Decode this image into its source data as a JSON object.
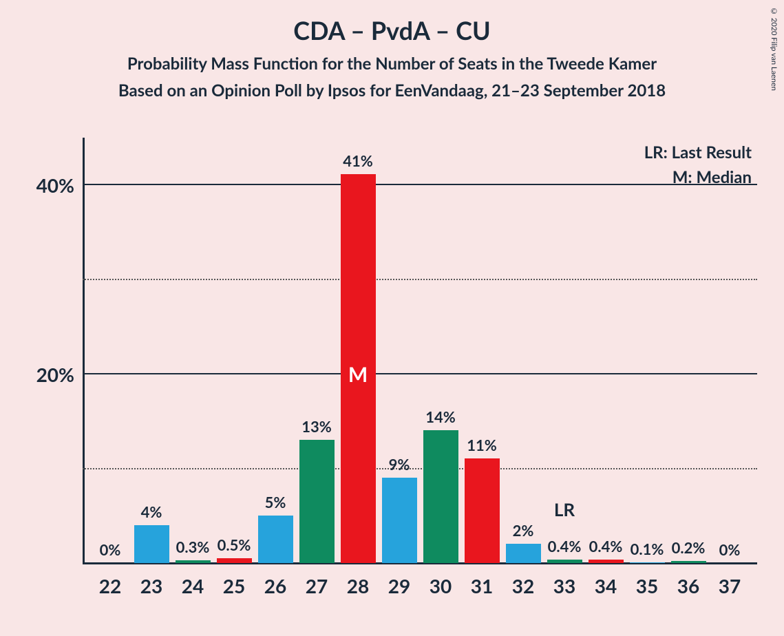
{
  "copyright": "© 2020 Filip van Laenen",
  "title": "CDA – PvdA – CU",
  "subtitle1": "Probability Mass Function for the Number of Seats in the Tweede Kamer",
  "subtitle2": "Based on an Opinion Poll by Ipsos for EenVandaag, 21–23 September 2018",
  "legend": {
    "lr": "LR: Last Result",
    "m": "M: Median"
  },
  "chart": {
    "type": "bar",
    "background_color": "#f9e6e6",
    "axis_color": "#1a2a3a",
    "text_color": "#1a2a3a",
    "ylim_max": 45,
    "y_major_ticks": [
      20,
      40
    ],
    "y_minor_ticks": [
      10,
      30
    ],
    "y_tick_labels": {
      "20": "20%",
      "40": "40%"
    },
    "bar_width_pct": 85,
    "colors": {
      "blue": "#26a3dc",
      "green": "#0f8b5f",
      "red": "#e9161e"
    },
    "median_mark": {
      "category": 28,
      "label": "M",
      "color": "#ffffff",
      "fontsize": 30
    },
    "last_result": {
      "category": 33,
      "label": "LR"
    },
    "categories": [
      22,
      23,
      24,
      25,
      26,
      27,
      28,
      29,
      30,
      31,
      32,
      33,
      34,
      35,
      36,
      37
    ],
    "bars": [
      {
        "x": 22,
        "value": 0,
        "label": "0%",
        "color": "blue"
      },
      {
        "x": 23,
        "value": 4,
        "label": "4%",
        "color": "blue"
      },
      {
        "x": 24,
        "value": 0.3,
        "label": "0.3%",
        "color": "green"
      },
      {
        "x": 25,
        "value": 0.5,
        "label": "0.5%",
        "color": "red"
      },
      {
        "x": 26,
        "value": 5,
        "label": "5%",
        "color": "blue"
      },
      {
        "x": 27,
        "value": 13,
        "label": "13%",
        "color": "green"
      },
      {
        "x": 28,
        "value": 41,
        "label": "41%",
        "color": "red"
      },
      {
        "x": 29,
        "value": 9,
        "label": "9%",
        "color": "blue"
      },
      {
        "x": 30,
        "value": 14,
        "label": "14%",
        "color": "green"
      },
      {
        "x": 31,
        "value": 11,
        "label": "11%",
        "color": "red"
      },
      {
        "x": 32,
        "value": 2,
        "label": "2%",
        "color": "blue"
      },
      {
        "x": 33,
        "value": 0.4,
        "label": "0.4%",
        "color": "green"
      },
      {
        "x": 34,
        "value": 0.4,
        "label": "0.4%",
        "color": "red"
      },
      {
        "x": 35,
        "value": 0.1,
        "label": "0.1%",
        "color": "blue"
      },
      {
        "x": 36,
        "value": 0.2,
        "label": "0.2%",
        "color": "green"
      },
      {
        "x": 37,
        "value": 0,
        "label": "0%",
        "color": "red"
      }
    ],
    "title_fontsize": 36,
    "subtitle_fontsize": 24,
    "ytick_fontsize": 28,
    "xtick_fontsize": 28,
    "barlabel_fontsize": 22,
    "legend_fontsize": 24
  }
}
